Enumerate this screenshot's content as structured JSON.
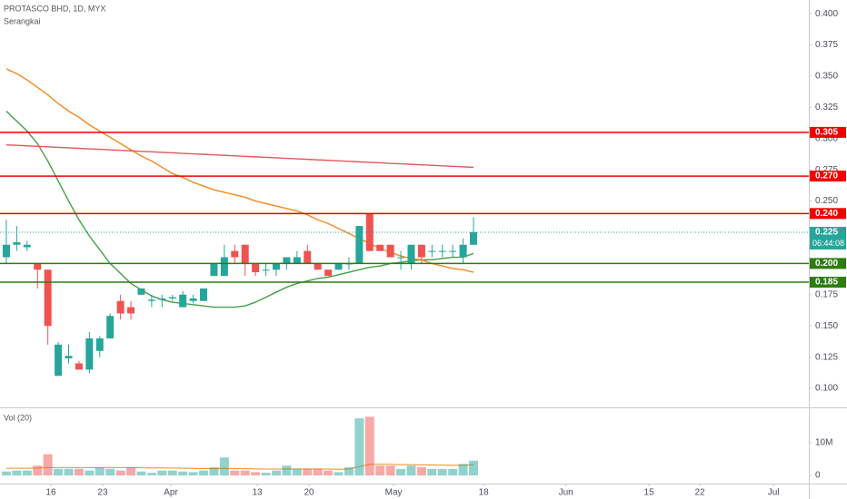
{
  "chart_data": {
    "type": "candlestick",
    "title": "PROTASCO BHD, 1D, MYX",
    "subtitle": "Serangkai",
    "up_color": "#26a69a",
    "down_color": "#ef5350",
    "open": [
      0.205,
      0.215,
      0.213,
      0.2,
      0.195,
      0.11,
      0.124,
      0.12,
      0.115,
      0.13,
      0.14,
      0.17,
      0.165,
      0.175,
      0.17,
      0.171,
      0.172,
      0.165,
      0.17,
      0.17,
      0.19,
      0.19,
      0.21,
      0.215,
      0.2,
      0.195,
      0.195,
      0.2,
      0.2,
      0.21,
      0.2,
      0.195,
      0.195,
      0.2,
      0.2,
      0.24,
      0.215,
      0.215,
      0.205,
      0.2,
      0.215,
      0.21,
      0.21,
      0.21,
      0.205,
      0.215
    ],
    "high": [
      0.235,
      0.23,
      0.218,
      0.2,
      0.195,
      0.137,
      0.135,
      0.122,
      0.145,
      0.142,
      0.16,
      0.175,
      0.17,
      0.18,
      0.175,
      0.175,
      0.175,
      0.178,
      0.175,
      0.18,
      0.2,
      0.215,
      0.215,
      0.215,
      0.2,
      0.2,
      0.2,
      0.205,
      0.21,
      0.215,
      0.2,
      0.195,
      0.2,
      0.205,
      0.23,
      0.24,
      0.215,
      0.215,
      0.21,
      0.215,
      0.215,
      0.215,
      0.215,
      0.215,
      0.22,
      0.237
    ],
    "low": [
      0.2,
      0.21,
      0.21,
      0.18,
      0.135,
      0.11,
      0.12,
      0.115,
      0.112,
      0.125,
      0.14,
      0.155,
      0.155,
      0.175,
      0.165,
      0.165,
      0.17,
      0.165,
      0.168,
      0.17,
      0.19,
      0.19,
      0.2,
      0.19,
      0.19,
      0.19,
      0.19,
      0.195,
      0.2,
      0.2,
      0.195,
      0.19,
      0.195,
      0.195,
      0.2,
      0.21,
      0.21,
      0.205,
      0.195,
      0.195,
      0.2,
      0.205,
      0.205,
      0.205,
      0.2,
      0.215
    ],
    "close": [
      0.215,
      0.217,
      0.215,
      0.195,
      0.15,
      0.135,
      0.126,
      0.115,
      0.14,
      0.14,
      0.158,
      0.16,
      0.16,
      0.18,
      0.171,
      0.172,
      0.173,
      0.175,
      0.172,
      0.18,
      0.2,
      0.205,
      0.205,
      0.2,
      0.193,
      0.195,
      0.2,
      0.205,
      0.205,
      0.2,
      0.195,
      0.19,
      0.2,
      0.2,
      0.23,
      0.21,
      0.21,
      0.205,
      0.205,
      0.215,
      0.205,
      0.21,
      0.21,
      0.21,
      0.215,
      0.225
    ],
    "moving_averages": [
      {
        "color": "#43a047",
        "values": [
          0.322,
          0.314,
          0.306,
          0.296,
          0.282,
          0.266,
          0.25,
          0.235,
          0.222,
          0.211,
          0.2,
          0.192,
          0.184,
          0.179,
          0.174,
          0.171,
          0.169,
          0.168,
          0.167,
          0.166,
          0.165,
          0.165,
          0.165,
          0.166,
          0.169,
          0.173,
          0.177,
          0.181,
          0.184,
          0.186,
          0.188,
          0.189,
          0.191,
          0.193,
          0.195,
          0.197,
          0.198,
          0.2,
          0.201,
          0.202,
          0.203,
          0.203,
          0.204,
          0.205,
          0.205,
          0.208
        ]
      },
      {
        "color": "#f5891f",
        "values": [
          0.356,
          0.352,
          0.347,
          0.341,
          0.335,
          0.328,
          0.322,
          0.317,
          0.311,
          0.306,
          0.301,
          0.296,
          0.291,
          0.286,
          0.282,
          0.277,
          0.272,
          0.269,
          0.265,
          0.262,
          0.259,
          0.257,
          0.255,
          0.253,
          0.25,
          0.248,
          0.246,
          0.244,
          0.242,
          0.239,
          0.235,
          0.232,
          0.228,
          0.224,
          0.22,
          0.216,
          0.212,
          0.209,
          0.206,
          0.204,
          0.203,
          0.2,
          0.198,
          0.196,
          0.195,
          0.193
        ]
      },
      {
        "color": "#e5575b",
        "values": [
          0.295,
          0.2946,
          0.2942,
          0.2938,
          0.2934,
          0.293,
          0.2926,
          0.2922,
          0.2918,
          0.2914,
          0.291,
          0.2906,
          0.2902,
          0.2898,
          0.2894,
          0.289,
          0.2886,
          0.2882,
          0.2878,
          0.2874,
          0.287,
          0.2866,
          0.2862,
          0.2858,
          0.2854,
          0.285,
          0.2846,
          0.2842,
          0.2838,
          0.2834,
          0.283,
          0.2826,
          0.2822,
          0.2818,
          0.2814,
          0.281,
          0.2806,
          0.2802,
          0.2798,
          0.2794,
          0.279,
          0.2786,
          0.2782,
          0.2778,
          0.2774,
          0.277
        ]
      }
    ],
    "levels": [
      {
        "value": 0.305,
        "label": "0.305",
        "color": "#f20000"
      },
      {
        "value": 0.27,
        "label": "0.270",
        "color": "#f20000"
      },
      {
        "value": 0.24,
        "label": "0.240",
        "color": "#f20000"
      },
      {
        "value": 0.2,
        "label": "0.200",
        "color": "#2e7d12"
      },
      {
        "value": 0.185,
        "label": "0.185",
        "color": "#2e7d12"
      }
    ],
    "last_price": {
      "value": 0.225,
      "label": "0.225"
    },
    "countdown": "06:44:08",
    "xlim": [
      -0.61,
      77.3
    ],
    "xticks": [
      {
        "value": 4.29,
        "label": "16"
      },
      {
        "value": 9.28,
        "label": "23"
      },
      {
        "value": 15.85,
        "label": "Apr"
      },
      {
        "value": 24.17,
        "label": "13"
      },
      {
        "value": 29.16,
        "label": "20"
      },
      {
        "value": 37.3,
        "label": "May"
      },
      {
        "value": 45.97,
        "label": "18"
      },
      {
        "value": 53.9,
        "label": "Jun"
      },
      {
        "value": 61.9,
        "label": "15"
      },
      {
        "value": 66.8,
        "label": "22"
      },
      {
        "value": 73.9,
        "label": "Jul"
      }
    ],
    "ylim": [
      0.0855,
      0.411
    ],
    "yticks": [
      {
        "value": 0.1,
        "label": "0.100"
      },
      {
        "value": 0.125,
        "label": "0.125"
      },
      {
        "value": 0.15,
        "label": "0.150"
      },
      {
        "value": 0.175,
        "label": "0.175"
      },
      {
        "value": 0.2,
        "label": "0.200"
      },
      {
        "value": 0.225,
        "label": "0.225"
      },
      {
        "value": 0.25,
        "label": "0.250"
      },
      {
        "value": 0.275,
        "label": "0.275"
      },
      {
        "value": 0.3,
        "label": "0.300"
      },
      {
        "value": 0.325,
        "label": "0.325"
      },
      {
        "value": 0.35,
        "label": "0.350"
      },
      {
        "value": 0.375,
        "label": "0.375"
      },
      {
        "value": 0.4,
        "label": "0.400"
      }
    ],
    "volume": {
      "title": "Vol (20)",
      "values": [
        1200000,
        1500000,
        1500000,
        3000000,
        6500000,
        2000000,
        2000000,
        2000000,
        1500000,
        2500000,
        2000000,
        1500000,
        2500000,
        1200000,
        800000,
        1500000,
        1500000,
        1200000,
        1000000,
        1500000,
        2500000,
        5500000,
        1500000,
        1500000,
        1000000,
        800000,
        1500000,
        3000000,
        2000000,
        2000000,
        2000000,
        1500000,
        1000000,
        2500000,
        17500000,
        18000000,
        3000000,
        3000000,
        2000000,
        3000000,
        2500000,
        2000000,
        2000000,
        2000000,
        3500000,
        4500000
      ],
      "ma_color": "#f5891f",
      "ma_values": [
        2200000,
        2200000,
        2200000,
        2250000,
        2400000,
        2400000,
        2400000,
        2400000,
        2400000,
        2400000,
        2400000,
        2400000,
        2400000,
        2350000,
        2300000,
        2300000,
        2250000,
        2200000,
        2150000,
        2100000,
        2100000,
        2150000,
        2100000,
        2050000,
        2000000,
        1950000,
        1950000,
        2000000,
        2000000,
        2000000,
        2000000,
        1950000,
        1900000,
        1950000,
        2700000,
        3400000,
        3400000,
        3400000,
        3300000,
        3300000,
        3250000,
        3200000,
        3150000,
        3100000,
        3150000,
        3250000
      ],
      "ylim": [
        -2500000,
        20600000
      ],
      "yticks": [
        0,
        {
          "value": 10000000,
          "label": "10M"
        }
      ]
    }
  }
}
